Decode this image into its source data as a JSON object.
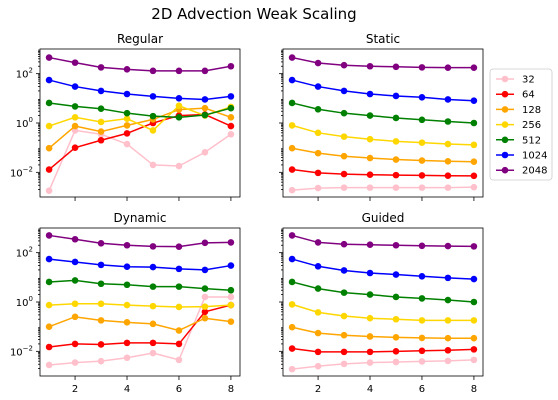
{
  "figure": {
    "title": "2D Advection Weak Scaling"
  },
  "chart_data": {
    "type": "line",
    "title": "2D Advection Weak Scaling",
    "shared_x": true,
    "shared_y": true,
    "x": [
      1,
      2,
      3,
      4,
      5,
      6,
      7,
      8
    ],
    "xticks": [
      2,
      4,
      6,
      8
    ],
    "xlim": [
      0.65,
      8.35
    ],
    "yscale": "log",
    "ylim": [
      0.001,
      1000
    ],
    "yticks": [
      0.01,
      1,
      100
    ],
    "ytick_labels": [
      {
        "base": "10",
        "exp": "−2"
      },
      {
        "base": "10",
        "exp": "0"
      },
      {
        "base": "10",
        "exp": "2"
      }
    ],
    "legend": {
      "placement": "outside-right",
      "entries": [
        "32",
        "64",
        "128",
        "256",
        "512",
        "1024",
        "2048"
      ]
    },
    "series_colors": {
      "32": "#ffc0cb",
      "64": "#ff0000",
      "128": "#ffa500",
      "256": "#ffd700",
      "512": "#008000",
      "1024": "#0000ff",
      "2048": "#800080"
    },
    "panels": [
      {
        "title": "Regular",
        "series": [
          {
            "name": "32",
            "values": [
              0.0018,
              0.5,
              0.35,
              0.14,
              0.02,
              0.018,
              0.065,
              0.35
            ]
          },
          {
            "name": "64",
            "values": [
              0.013,
              0.1,
              0.2,
              0.38,
              1.0,
              2.0,
              2.2,
              0.75
            ]
          },
          {
            "name": "128",
            "values": [
              0.095,
              0.75,
              0.45,
              0.8,
              1.4,
              3.5,
              4.0,
              1.7
            ]
          },
          {
            "name": "256",
            "values": [
              0.75,
              1.7,
              1.1,
              1.5,
              0.5,
              5.0,
              2.0,
              4.5
            ]
          },
          {
            "name": "512",
            "values": [
              6.5,
              4.7,
              3.8,
              2.5,
              1.9,
              1.7,
              2.1,
              4.0
            ]
          },
          {
            "name": "1024",
            "values": [
              55,
              30,
              20,
              15,
              12,
              10,
              9,
              12
            ]
          },
          {
            "name": "2048",
            "values": [
              450,
              280,
              180,
              150,
              130,
              130,
              130,
              200
            ]
          }
        ]
      },
      {
        "title": "Static",
        "series": [
          {
            "name": "32",
            "values": [
              0.0019,
              0.0023,
              0.0024,
              0.0024,
              0.0024,
              0.0024,
              0.0024,
              0.0025
            ]
          },
          {
            "name": "64",
            "values": [
              0.013,
              0.0095,
              0.0085,
              0.008,
              0.0077,
              0.0075,
              0.0073,
              0.0072
            ]
          },
          {
            "name": "128",
            "values": [
              0.095,
              0.06,
              0.045,
              0.038,
              0.033,
              0.03,
              0.028,
              0.027
            ]
          },
          {
            "name": "256",
            "values": [
              0.8,
              0.4,
              0.28,
              0.22,
              0.18,
              0.16,
              0.14,
              0.13
            ]
          },
          {
            "name": "512",
            "values": [
              6.5,
              3.6,
              2.5,
              2.0,
              1.6,
              1.35,
              1.15,
              1.0
            ]
          },
          {
            "name": "1024",
            "values": [
              55,
              30,
              20,
              15,
              12.5,
              11,
              9,
              8
            ]
          },
          {
            "name": "2048",
            "values": [
              450,
              270,
              220,
              200,
              190,
              180,
              175,
              175
            ]
          }
        ]
      },
      {
        "title": "Dynamic",
        "series": [
          {
            "name": "32",
            "values": [
              0.0028,
              0.0035,
              0.004,
              0.0055,
              0.0085,
              0.0045,
              1.6,
              1.6
            ]
          },
          {
            "name": "64",
            "values": [
              0.015,
              0.02,
              0.019,
              0.022,
              0.022,
              0.02,
              0.4,
              0.75
            ]
          },
          {
            "name": "128",
            "values": [
              0.1,
              0.25,
              0.18,
              0.15,
              0.13,
              0.07,
              0.22,
              0.16
            ]
          },
          {
            "name": "256",
            "values": [
              0.75,
              0.85,
              0.85,
              0.75,
              0.68,
              0.63,
              0.65,
              0.75
            ]
          },
          {
            "name": "512",
            "values": [
              6.5,
              7.5,
              5.5,
              5.0,
              4.2,
              4.2,
              3.5,
              3.0
            ]
          },
          {
            "name": "1024",
            "values": [
              55,
              42,
              32,
              27,
              26,
              22,
              20,
              30
            ]
          },
          {
            "name": "2048",
            "values": [
              500,
              350,
              240,
              200,
              180,
              175,
              250,
              260
            ]
          }
        ]
      },
      {
        "title": "Guided",
        "series": [
          {
            "name": "32",
            "values": [
              0.0019,
              0.0025,
              0.0031,
              0.0035,
              0.0037,
              0.0039,
              0.0041,
              0.0045
            ]
          },
          {
            "name": "64",
            "values": [
              0.013,
              0.0095,
              0.0095,
              0.0095,
              0.01,
              0.0105,
              0.011,
              0.012
            ]
          },
          {
            "name": "128",
            "values": [
              0.095,
              0.055,
              0.045,
              0.04,
              0.037,
              0.035,
              0.034,
              0.034
            ]
          },
          {
            "name": "256",
            "values": [
              0.8,
              0.38,
              0.27,
              0.22,
              0.2,
              0.18,
              0.18,
              0.18
            ]
          },
          {
            "name": "512",
            "values": [
              6.5,
              3.5,
              2.4,
              2.0,
              1.6,
              1.4,
              1.2,
              1.0
            ]
          },
          {
            "name": "1024",
            "values": [
              55,
              28,
              19,
              15,
              13,
              11,
              9.5,
              8.5
            ]
          },
          {
            "name": "2048",
            "values": [
              500,
              260,
              220,
              210,
              200,
              190,
              185,
              180
            ]
          }
        ]
      }
    ]
  }
}
